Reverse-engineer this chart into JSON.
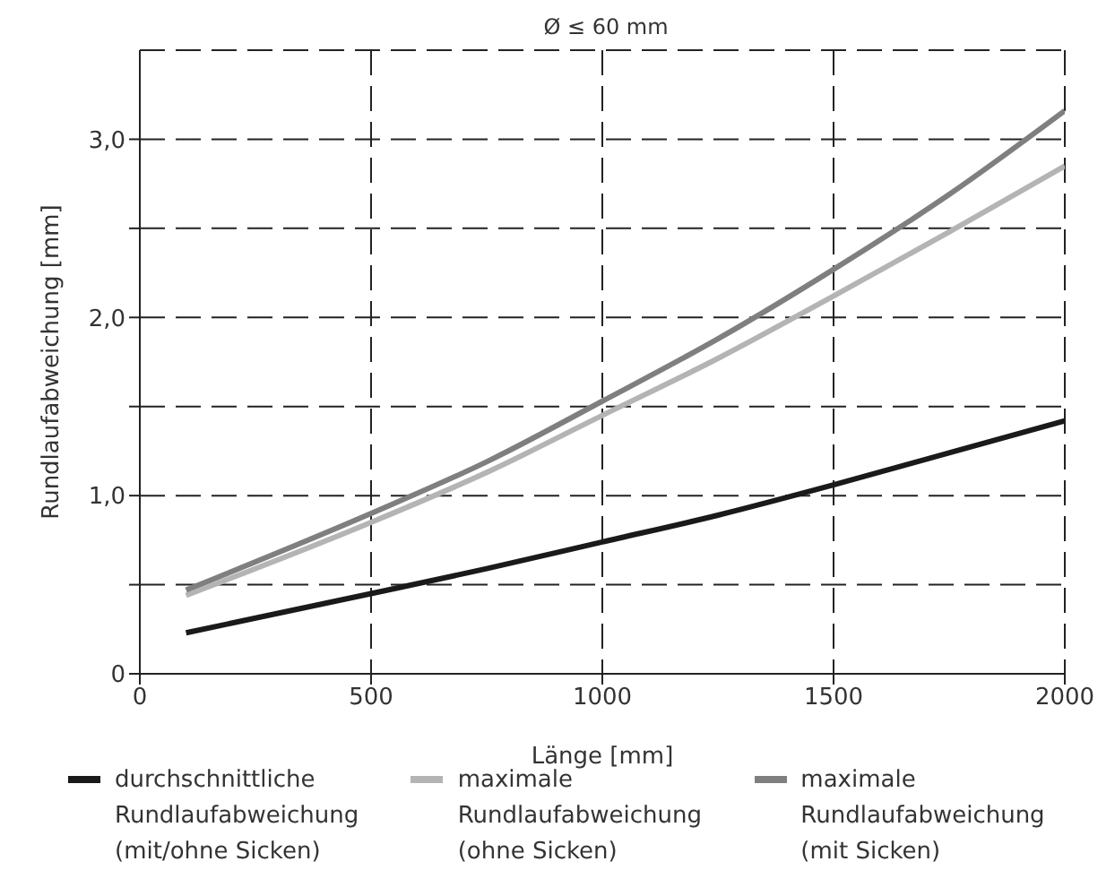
{
  "chart_data": {
    "type": "line",
    "title": "Ø ≤ 60 mm",
    "xlabel": "Länge [mm]",
    "ylabel": "Rundlaufabweichung [mm]",
    "x": [
      100,
      500,
      750,
      1000,
      1250,
      1500,
      1750,
      2000
    ],
    "series": [
      {
        "name": "durchschnittliche Rundlaufabweichung (mit/ohne Sicken)",
        "color": "#1a1a1a",
        "values": [
          0.23,
          0.45,
          0.59,
          0.74,
          0.89,
          1.06,
          1.24,
          1.42
        ]
      },
      {
        "name": "maximale Rundlaufabweichung (ohne Sicken)",
        "color": "#b4b4b4",
        "values": [
          0.44,
          0.85,
          1.13,
          1.45,
          1.77,
          2.12,
          2.48,
          2.85
        ]
      },
      {
        "name": "maximale Rundlaufabweichung (mit Sicken)",
        "color": "#7f7f7f",
        "values": [
          0.47,
          0.9,
          1.19,
          1.53,
          1.88,
          2.27,
          2.69,
          3.16
        ]
      }
    ],
    "xlim": [
      0,
      2000
    ],
    "xticks": [
      0,
      500,
      1000,
      1500,
      2000
    ],
    "ylim": [
      0,
      3.5
    ],
    "yticks": [
      0,
      {
        "value": 0.5,
        "label": null
      },
      {
        "value": 1,
        "label": "1,0"
      },
      {
        "value": 1.5,
        "label": null
      },
      {
        "value": 2,
        "label": "2,0"
      },
      {
        "value": 2.5,
        "label": null
      },
      {
        "value": 3,
        "label": "3,0"
      }
    ],
    "grid": true,
    "legend": "bottom",
    "marker": "none",
    "line_style": "solid"
  }
}
